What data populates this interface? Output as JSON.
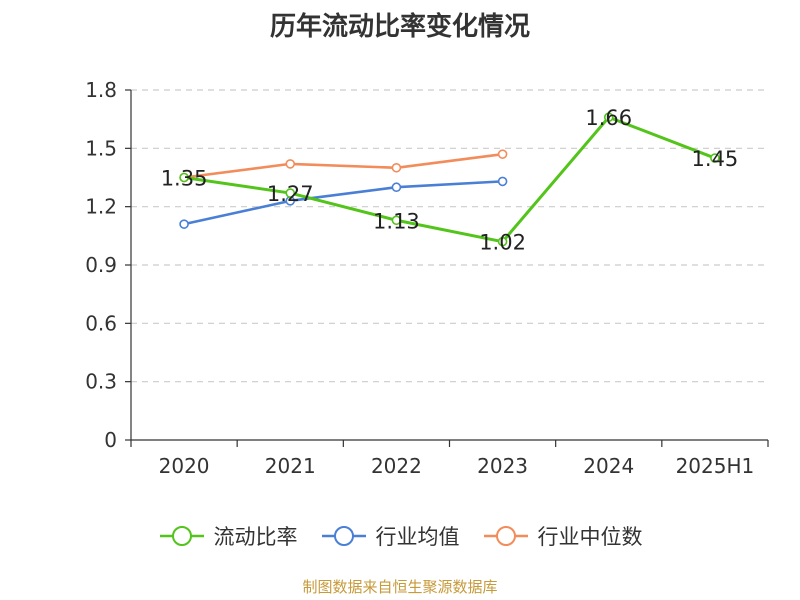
{
  "chart_data": {
    "type": "line",
    "title": "历年流动比率变化情况",
    "categories": [
      "2020",
      "2021",
      "2022",
      "2023",
      "2024",
      "2025H1"
    ],
    "y_ticks": [
      "0",
      "0.3",
      "0.6",
      "0.9",
      "1.2",
      "1.5",
      "1.8"
    ],
    "ylim": [
      0,
      1.8
    ],
    "grid": true,
    "legend_position": "bottom",
    "series": [
      {
        "name": "流动比率",
        "color": "#52c41a",
        "values": [
          1.35,
          1.27,
          1.13,
          1.02,
          1.66,
          1.45
        ],
        "labels": [
          "1.35",
          "1.27",
          "1.13",
          "1.02",
          "1.66",
          "1.45"
        ]
      },
      {
        "name": "行业均值",
        "color": "#4a7fd6",
        "values": [
          1.11,
          1.23,
          1.3,
          1.33,
          null,
          null
        ]
      },
      {
        "name": "行业中位数",
        "color": "#f28c5a",
        "values": [
          1.35,
          1.42,
          1.4,
          1.47,
          null,
          null
        ]
      }
    ]
  },
  "footer": {
    "source": "制图数据来自恒生聚源数据库"
  }
}
